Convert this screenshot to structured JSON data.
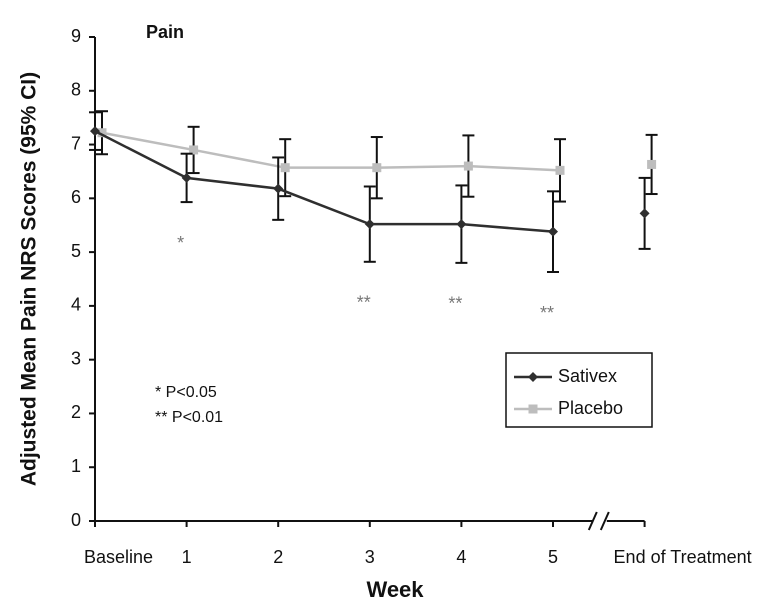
{
  "chart_data": {
    "type": "line",
    "title": "Pain",
    "y_label": "Adjusted Mean Pain NRS Scores (95% CI)",
    "x_label": "Week",
    "categories": [
      "Baseline",
      "1",
      "2",
      "3",
      "4",
      "5",
      "End of Treatment"
    ],
    "x_axis_break": true,
    "series": [
      {
        "name": "Sativex",
        "color": "#2f2f2f",
        "marker": "diamond",
        "values": [
          7.25,
          6.38,
          6.18,
          5.52,
          5.52,
          5.38,
          5.72
        ],
        "errors": [
          0.35,
          0.45,
          0.58,
          0.7,
          0.72,
          0.75,
          0.66
        ]
      },
      {
        "name": "Placebo",
        "color": "#bdbdbd",
        "marker": "square",
        "values": [
          7.22,
          6.9,
          6.57,
          6.57,
          6.6,
          6.52,
          6.63
        ],
        "errors": [
          0.4,
          0.43,
          0.53,
          0.57,
          0.57,
          0.58,
          0.55
        ]
      }
    ],
    "significance_labels": [
      null,
      "*",
      null,
      "**",
      "**",
      "**",
      null
    ],
    "footnotes": [
      "*   P<0.05",
      "** P<0.01"
    ],
    "ylim": [
      0,
      9
    ],
    "yticks": [
      0,
      1,
      2,
      3,
      4,
      5,
      6,
      7,
      8,
      9
    ],
    "grid": false,
    "legend": "right"
  }
}
